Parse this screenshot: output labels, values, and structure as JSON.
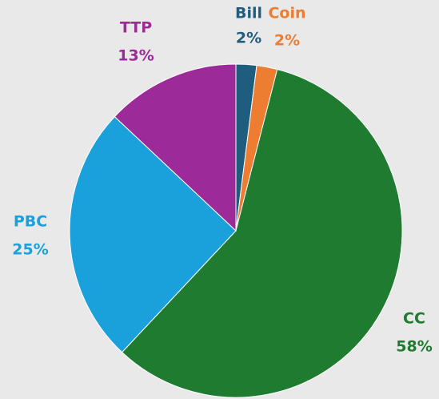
{
  "chart_data": {
    "type": "pie",
    "categories": [
      "Bill",
      "Coin",
      "CC",
      "PBC",
      "TTP"
    ],
    "values": [
      2,
      2,
      58,
      25,
      13
    ],
    "value_labels": [
      "2%",
      "2%",
      "58%",
      "25%",
      "13%"
    ],
    "colors": [
      "#1f5d7e",
      "#ed7d31",
      "#1e7b2f",
      "#1aa0da",
      "#9c2a98"
    ]
  }
}
